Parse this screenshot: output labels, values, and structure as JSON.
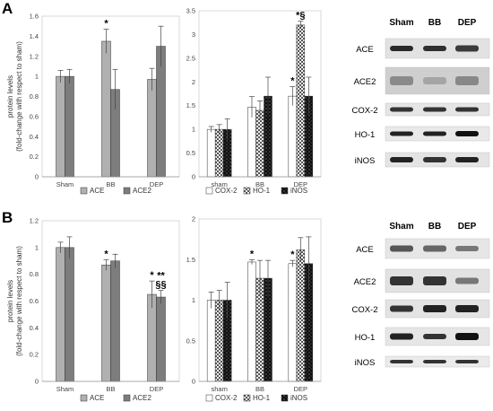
{
  "panels": [
    {
      "letter": "A",
      "blot": {
        "headers": [
          "Sham",
          "BB",
          "DEP"
        ],
        "rows": [
          "ACE",
          "ACE2",
          "COX-2",
          "HO-1",
          "iNOS"
        ]
      }
    },
    {
      "letter": "B",
      "blot": {
        "headers": [
          "Sham",
          "BB",
          "DEP"
        ],
        "rows": [
          "ACE",
          "ACE2",
          "COX-2",
          "HO-1",
          "iNOS"
        ]
      }
    }
  ],
  "chart_data": [
    {
      "id": "A-left",
      "type": "bar",
      "ylabel_lines": [
        "protein levels",
        "(fold-change with respect to sham)"
      ],
      "ylim": [
        0,
        1.6
      ],
      "yticks": [
        0,
        0.2,
        0.4,
        0.6,
        0.8,
        1,
        1.2,
        1.4,
        1.6
      ],
      "categories": [
        "Sham",
        "BB",
        "DEP"
      ],
      "grid": false,
      "series": [
        {
          "name": "ACE",
          "color": "#b0b0b0",
          "pattern": "solid",
          "values": [
            1.0,
            1.35,
            0.97
          ],
          "errors": [
            0.06,
            0.12,
            0.11
          ]
        },
        {
          "name": "ACE2",
          "color": "#7d7d7d",
          "pattern": "solid",
          "values": [
            1.0,
            0.87,
            1.3
          ],
          "errors": [
            0.07,
            0.2,
            0.2
          ]
        }
      ],
      "annotations": [
        {
          "category": 1,
          "series": 0,
          "text": "*"
        }
      ]
    },
    {
      "id": "A-mid",
      "type": "bar",
      "ylim": [
        0,
        3.5
      ],
      "yticks": [
        0,
        0.5,
        1,
        1.5,
        2,
        2.5,
        3,
        3.5
      ],
      "categories": [
        "sham",
        "BB",
        "DEP"
      ],
      "grid": false,
      "series": [
        {
          "name": "COX-2",
          "color": "#ffffff",
          "pattern": "solid",
          "values": [
            1.0,
            1.47,
            1.7
          ],
          "errors": [
            0.06,
            0.22,
            0.2
          ]
        },
        {
          "name": "HO-1",
          "color": "#c8c8c8",
          "pattern": "checker",
          "values": [
            1.0,
            1.4,
            3.2
          ],
          "errors": [
            0.1,
            0.2,
            0.08
          ]
        },
        {
          "name": "iNOS",
          "color": "#111111",
          "pattern": "dots",
          "values": [
            1.0,
            1.7,
            1.7
          ],
          "errors": [
            0.22,
            0.4,
            0.4
          ]
        }
      ],
      "annotations": [
        {
          "category": 0,
          "series": 0,
          "text": ""
        },
        {
          "category": 2,
          "series": 0,
          "text": "*"
        },
        {
          "category": 2,
          "series": 1,
          "text": "*§"
        }
      ]
    },
    {
      "id": "B-left",
      "type": "bar",
      "ylabel_lines": [
        "protein levels",
        "(fold-change with respect to sham)"
      ],
      "ylim": [
        0,
        1.2
      ],
      "yticks": [
        0,
        0.2,
        0.4,
        0.6,
        0.8,
        1,
        1.2
      ],
      "categories": [
        "Sham",
        "BB",
        "DEP"
      ],
      "grid": false,
      "series": [
        {
          "name": "ACE",
          "color": "#b0b0b0",
          "pattern": "solid",
          "values": [
            1.0,
            0.87,
            0.65
          ],
          "errors": [
            0.04,
            0.04,
            0.1
          ]
        },
        {
          "name": "ACE2",
          "color": "#7d7d7d",
          "pattern": "solid",
          "values": [
            1.0,
            0.9,
            0.63
          ],
          "errors": [
            0.08,
            0.05,
            0.05
          ]
        }
      ],
      "annotations": [
        {
          "category": 1,
          "series": 0,
          "text": "*"
        },
        {
          "category": 2,
          "series": 0,
          "text": "*"
        },
        {
          "category": 2,
          "series": 1,
          "text": "§§"
        },
        {
          "category": 2,
          "series": 1,
          "text": "**"
        }
      ]
    },
    {
      "id": "B-mid",
      "type": "bar",
      "ylim": [
        0,
        2
      ],
      "yticks": [
        0,
        0.5,
        1,
        1.5,
        2
      ],
      "categories": [
        "sham",
        "BB",
        "DEP"
      ],
      "grid": false,
      "series": [
        {
          "name": "COX-2",
          "color": "#ffffff",
          "pattern": "solid",
          "values": [
            1.0,
            1.47,
            1.45
          ],
          "errors": [
            0.1,
            0.03,
            0.04
          ]
        },
        {
          "name": "HO-1",
          "color": "#c8c8c8",
          "pattern": "checker",
          "values": [
            1.0,
            1.27,
            1.62
          ],
          "errors": [
            0.12,
            0.22,
            0.15
          ]
        },
        {
          "name": "iNOS",
          "color": "#111111",
          "pattern": "dots",
          "values": [
            1.0,
            1.27,
            1.45
          ],
          "errors": [
            0.22,
            0.22,
            0.33
          ]
        }
      ],
      "annotations": [
        {
          "category": 1,
          "series": 0,
          "text": "*"
        },
        {
          "category": 2,
          "series": 0,
          "text": "*"
        }
      ]
    }
  ]
}
